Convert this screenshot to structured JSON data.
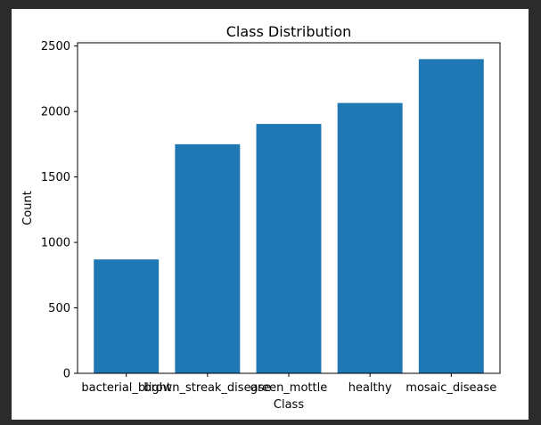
{
  "chart_data": {
    "type": "bar",
    "title": "Class Distribution",
    "xlabel": "Class",
    "ylabel": "Count",
    "categories": [
      "bacterial_blight",
      "brown_streak_disease",
      "green_mottle",
      "healthy",
      "mosaic_disease"
    ],
    "values": [
      870,
      1750,
      1905,
      2065,
      2400
    ],
    "ylim": [
      0,
      2525
    ],
    "yticks": [
      0,
      500,
      1000,
      1500,
      2000,
      2500
    ],
    "bar_color": "#1f77b4",
    "grid": false,
    "legend": "none"
  }
}
